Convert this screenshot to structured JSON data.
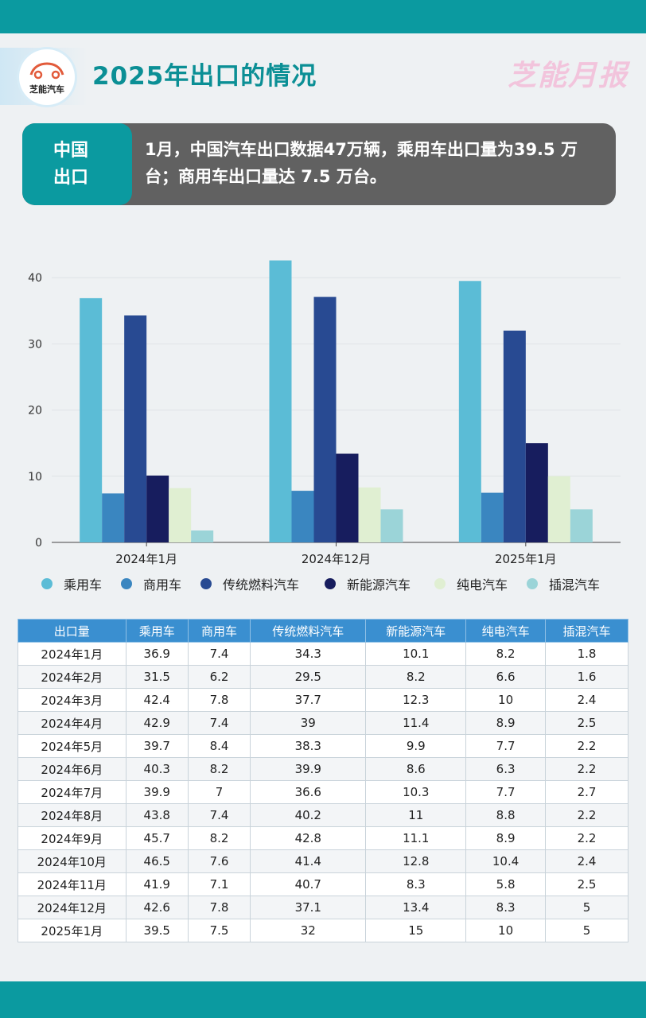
{
  "header": {
    "logo_text": "芝能汽车",
    "title": "2025年出口的情况",
    "brand": "芝能月报"
  },
  "summary": {
    "label": "中国出口",
    "text": "1月，中国汽车出口数据47万辆，乘用车出口量为39.5 万台；商用车出口量达 7.5 万台。"
  },
  "colors": {
    "accent": "#0b9aa0",
    "table_header": "#3a8fd0"
  },
  "chart_data": {
    "type": "bar",
    "categories": [
      "2024年1月",
      "2024年12月",
      "2025年1月"
    ],
    "ylim": [
      0,
      40
    ],
    "yticks": [
      0,
      10,
      20,
      30,
      40
    ],
    "grid": true,
    "legend_position": "bottom",
    "series": [
      {
        "name": "乘用车",
        "color": "#5bbcd6",
        "values": [
          36.9,
          42.6,
          39.5
        ]
      },
      {
        "name": "商用车",
        "color": "#3a86c0",
        "values": [
          7.4,
          7.8,
          7.5
        ]
      },
      {
        "name": "传统燃料汽车",
        "color": "#284a92",
        "values": [
          34.3,
          37.1,
          32
        ]
      },
      {
        "name": "新能源汽车",
        "color": "#171d5e",
        "values": [
          10.1,
          13.4,
          15
        ]
      },
      {
        "name": "纯电汽车",
        "color": "#e0efd2",
        "values": [
          8.2,
          8.3,
          10
        ]
      },
      {
        "name": "插混汽车",
        "color": "#9bd4d8",
        "values": [
          1.8,
          5,
          5
        ]
      }
    ]
  },
  "table": {
    "headers": [
      "出口量",
      "乘用车",
      "商用车",
      "传统燃料汽车",
      "新能源汽车",
      "纯电汽车",
      "插混汽车"
    ],
    "rows": [
      [
        "2024年1月",
        "36.9",
        "7.4",
        "34.3",
        "10.1",
        "8.2",
        "1.8"
      ],
      [
        "2024年2月",
        "31.5",
        "6.2",
        "29.5",
        "8.2",
        "6.6",
        "1.6"
      ],
      [
        "2024年3月",
        "42.4",
        "7.8",
        "37.7",
        "12.3",
        "10",
        "2.4"
      ],
      [
        "2024年4月",
        "42.9",
        "7.4",
        "39",
        "11.4",
        "8.9",
        "2.5"
      ],
      [
        "2024年5月",
        "39.7",
        "8.4",
        "38.3",
        "9.9",
        "7.7",
        "2.2"
      ],
      [
        "2024年6月",
        "40.3",
        "8.2",
        "39.9",
        "8.6",
        "6.3",
        "2.2"
      ],
      [
        "2024年7月",
        "39.9",
        "7",
        "36.6",
        "10.3",
        "7.7",
        "2.7"
      ],
      [
        "2024年8月",
        "43.8",
        "7.4",
        "40.2",
        "11",
        "8.8",
        "2.2"
      ],
      [
        "2024年9月",
        "45.7",
        "8.2",
        "42.8",
        "11.1",
        "8.9",
        "2.2"
      ],
      [
        "2024年10月",
        "46.5",
        "7.6",
        "41.4",
        "12.8",
        "10.4",
        "2.4"
      ],
      [
        "2024年11月",
        "41.9",
        "7.1",
        "40.7",
        "8.3",
        "5.8",
        "2.5"
      ],
      [
        "2024年12月",
        "42.6",
        "7.8",
        "37.1",
        "13.4",
        "8.3",
        "5"
      ],
      [
        "2025年1月",
        "39.5",
        "7.5",
        "32",
        "15",
        "10",
        "5"
      ]
    ]
  }
}
